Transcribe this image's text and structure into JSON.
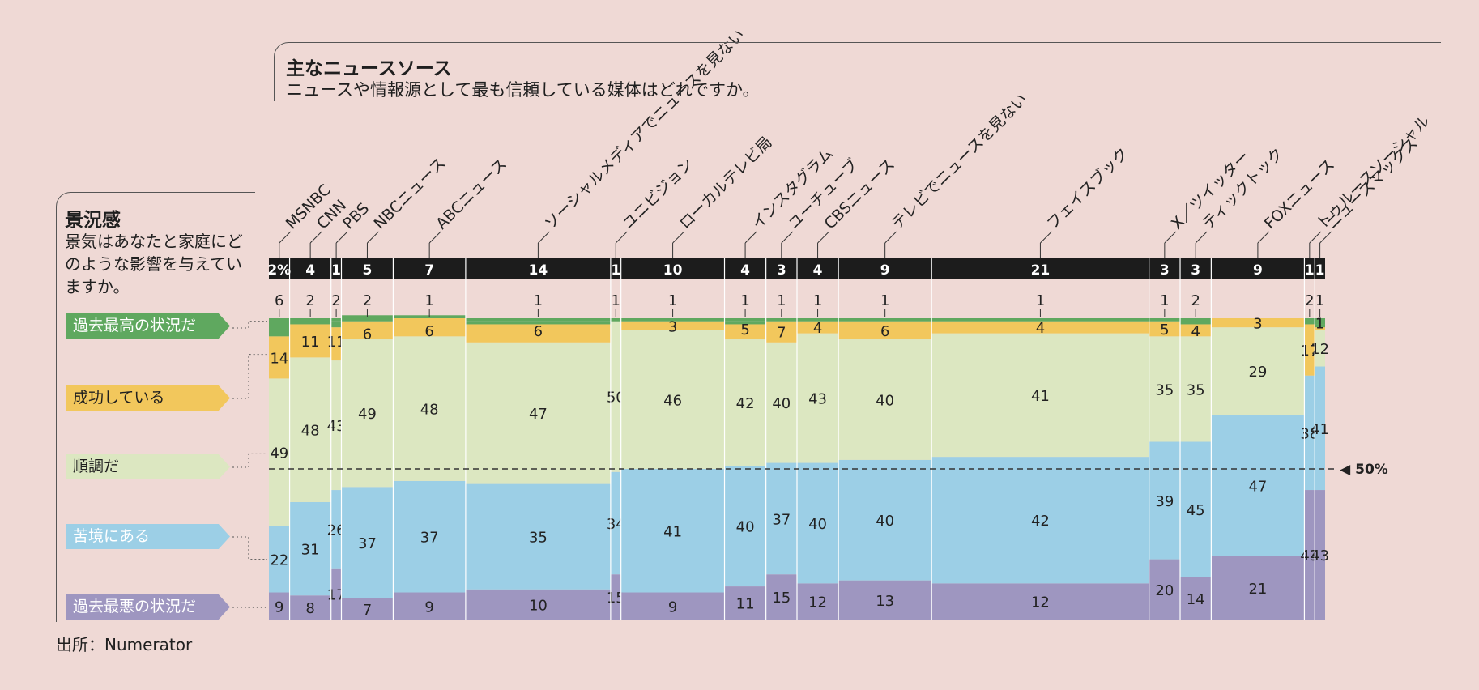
{
  "title": {
    "main": "主なニュースソース",
    "sub": "ニュースや情報源として最も信頼している媒体はどれですか。"
  },
  "legend": {
    "title": "景況感",
    "question": "景気はあなたと家庭にどのような影響を与えていますか。"
  },
  "categories": [
    {
      "label": "過去最高の状況だ",
      "color": "#5fa85f"
    },
    {
      "label": "成功している",
      "color": "#f2c75c"
    },
    {
      "label": "順調だ",
      "color": "#dce7c1"
    },
    {
      "label": "苦境にある",
      "color": "#9ccfe6"
    },
    {
      "label": "過去最悪の状況だ",
      "color": "#9e96c0"
    }
  ],
  "reference_line": "◀ 50%",
  "source": "出所：Numerator",
  "chart_data": {
    "type": "marimekko",
    "title": "主なニュースソース",
    "subtitle": "ニュースや情報源として最も信頼している媒体はどれですか。",
    "width_unit": "%",
    "stack_order": [
      "過去最悪の状況だ",
      "苦境にある",
      "順調だ",
      "成功している",
      "過去最高の状況だ"
    ],
    "reference_value": 50,
    "columns": [
      {
        "name": "MSNBC",
        "share": "2%",
        "width": 2,
        "best": 6,
        "success": 14,
        "good": 49,
        "struggling": 22,
        "worst": 9
      },
      {
        "name": "CNN",
        "share": "4",
        "width": 4,
        "best": 2,
        "success": 11,
        "good": 48,
        "struggling": 31,
        "worst": 8
      },
      {
        "name": "PBS",
        "share": "1",
        "width": 1,
        "best": 2,
        "success": 11,
        "good": 43,
        "struggling": 26,
        "worst": 17
      },
      {
        "name": "NBCニュース",
        "share": "5",
        "width": 5,
        "best": 2,
        "success": 6,
        "good": 49,
        "struggling": 37,
        "worst": 7
      },
      {
        "name": "ABCニュース",
        "share": "7",
        "width": 7,
        "best": 1,
        "success": 6,
        "good": 48,
        "struggling": 37,
        "worst": 9
      },
      {
        "name": "ソーシャルメディアでニュースを見ない",
        "share": "14",
        "width": 14,
        "best": 1,
        "success": 6,
        "good": 47,
        "struggling": 35,
        "worst": 10
      },
      {
        "name": "ユニビジョン",
        "share": "1",
        "width": 1,
        "best": 1,
        "success": 0,
        "good": 50,
        "struggling": 34,
        "worst": 15
      },
      {
        "name": "ローカルテレビ局",
        "share": "10",
        "width": 10,
        "best": 1,
        "success": 3,
        "good": 46,
        "struggling": 41,
        "worst": 9
      },
      {
        "name": "インスタグラム",
        "share": "4",
        "width": 4,
        "best": 1,
        "success": 5,
        "good": 42,
        "struggling": 40,
        "worst": 11
      },
      {
        "name": "ユーチューブ",
        "share": "3",
        "width": 3,
        "best": 1,
        "success": 7,
        "good": 40,
        "struggling": 37,
        "worst": 15
      },
      {
        "name": "CBSニュース",
        "share": "4",
        "width": 4,
        "best": 1,
        "success": 4,
        "good": 43,
        "struggling": 40,
        "worst": 12
      },
      {
        "name": "テレビでニュースを見ない",
        "share": "9",
        "width": 9,
        "best": 1,
        "success": 6,
        "good": 40,
        "struggling": 40,
        "worst": 13
      },
      {
        "name": "フェイスブック",
        "share": "21",
        "width": 21,
        "best": 1,
        "success": 4,
        "good": 41,
        "struggling": 42,
        "worst": 12
      },
      {
        "name": "X／ツイッター",
        "share": "3",
        "width": 3,
        "best": 1,
        "success": 5,
        "good": 35,
        "struggling": 39,
        "worst": 20
      },
      {
        "name": "ティックトック",
        "share": "3",
        "width": 3,
        "best": 2,
        "success": 4,
        "good": 35,
        "struggling": 45,
        "worst": 14
      },
      {
        "name": "FOXニュース",
        "share": "9",
        "width": 9,
        "best": 0,
        "success": 3,
        "good": 29,
        "struggling": 47,
        "worst": 21
      },
      {
        "name": "トゥルースソーシャル",
        "share": "1",
        "width": 1,
        "best": 2,
        "success": 17,
        "good": 0,
        "struggling": 38,
        "worst": 43
      },
      {
        "name": "ニュースマックス",
        "share": "1",
        "width": 1,
        "best": 1,
        "success": 1,
        "good": 12,
        "struggling": 41,
        "worst": 43
      }
    ]
  }
}
